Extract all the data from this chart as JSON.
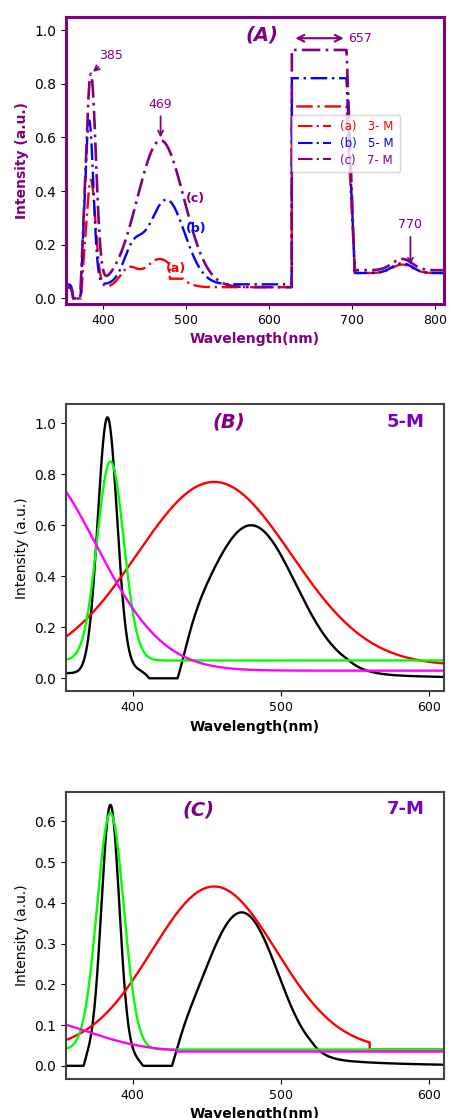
{
  "panel_A": {
    "title": "(A)",
    "xlabel": "Wavelength(nm)",
    "ylabel": "Intensity (a.u.)",
    "xlim": [
      355,
      810
    ],
    "border_color": "#800080",
    "series_a_color": "red",
    "series_b_color": "blue",
    "series_c_color": "#800080"
  },
  "panel_B": {
    "title": "(B)",
    "label": "5-M",
    "xlabel": "Wavelength(nm)",
    "ylabel": "Intensity (a.u.)",
    "xlim": [
      355,
      610
    ]
  },
  "panel_C": {
    "title": "(C)",
    "label": "7-M",
    "xlabel": "Wavelength(nm)",
    "ylabel": "Intensity (a.u.)",
    "xlim": [
      355,
      610
    ]
  }
}
